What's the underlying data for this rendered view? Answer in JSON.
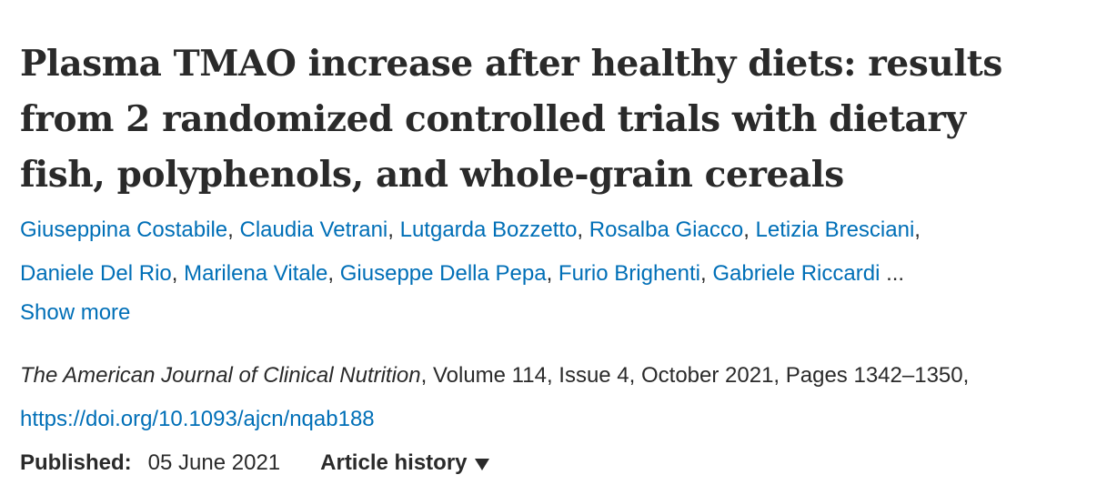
{
  "article": {
    "title_lines": [
      "Plasma TMAO increase after healthy diets: results",
      "from 2 randomized controlled trials with dietary",
      "fish, polyphenols, and whole-grain cereals"
    ],
    "authors": [
      "Giuseppina Costabile",
      "Claudia Vetrani",
      "Lutgarda Bozzetto",
      "Rosalba Giacco",
      "Letizia Bresciani",
      "Daniele Del Rio",
      "Marilena Vitale",
      "Giuseppe Della Pepa",
      "Furio Brighenti",
      "Gabriele Riccardi"
    ],
    "ellipsis": "...",
    "show_more": "Show more",
    "journal": "The American Journal of Clinical Nutrition",
    "citation_details": ", Volume 114, Issue 4, October 2021, Pages 1342–1350, ",
    "doi": "https://doi.org/10.1093/ajcn/nqab188",
    "published_label": "Published:",
    "published_date": "05 June 2021",
    "history_label": "Article history",
    "link_color": "#006fb7",
    "text_color": "#2a2a2a"
  }
}
